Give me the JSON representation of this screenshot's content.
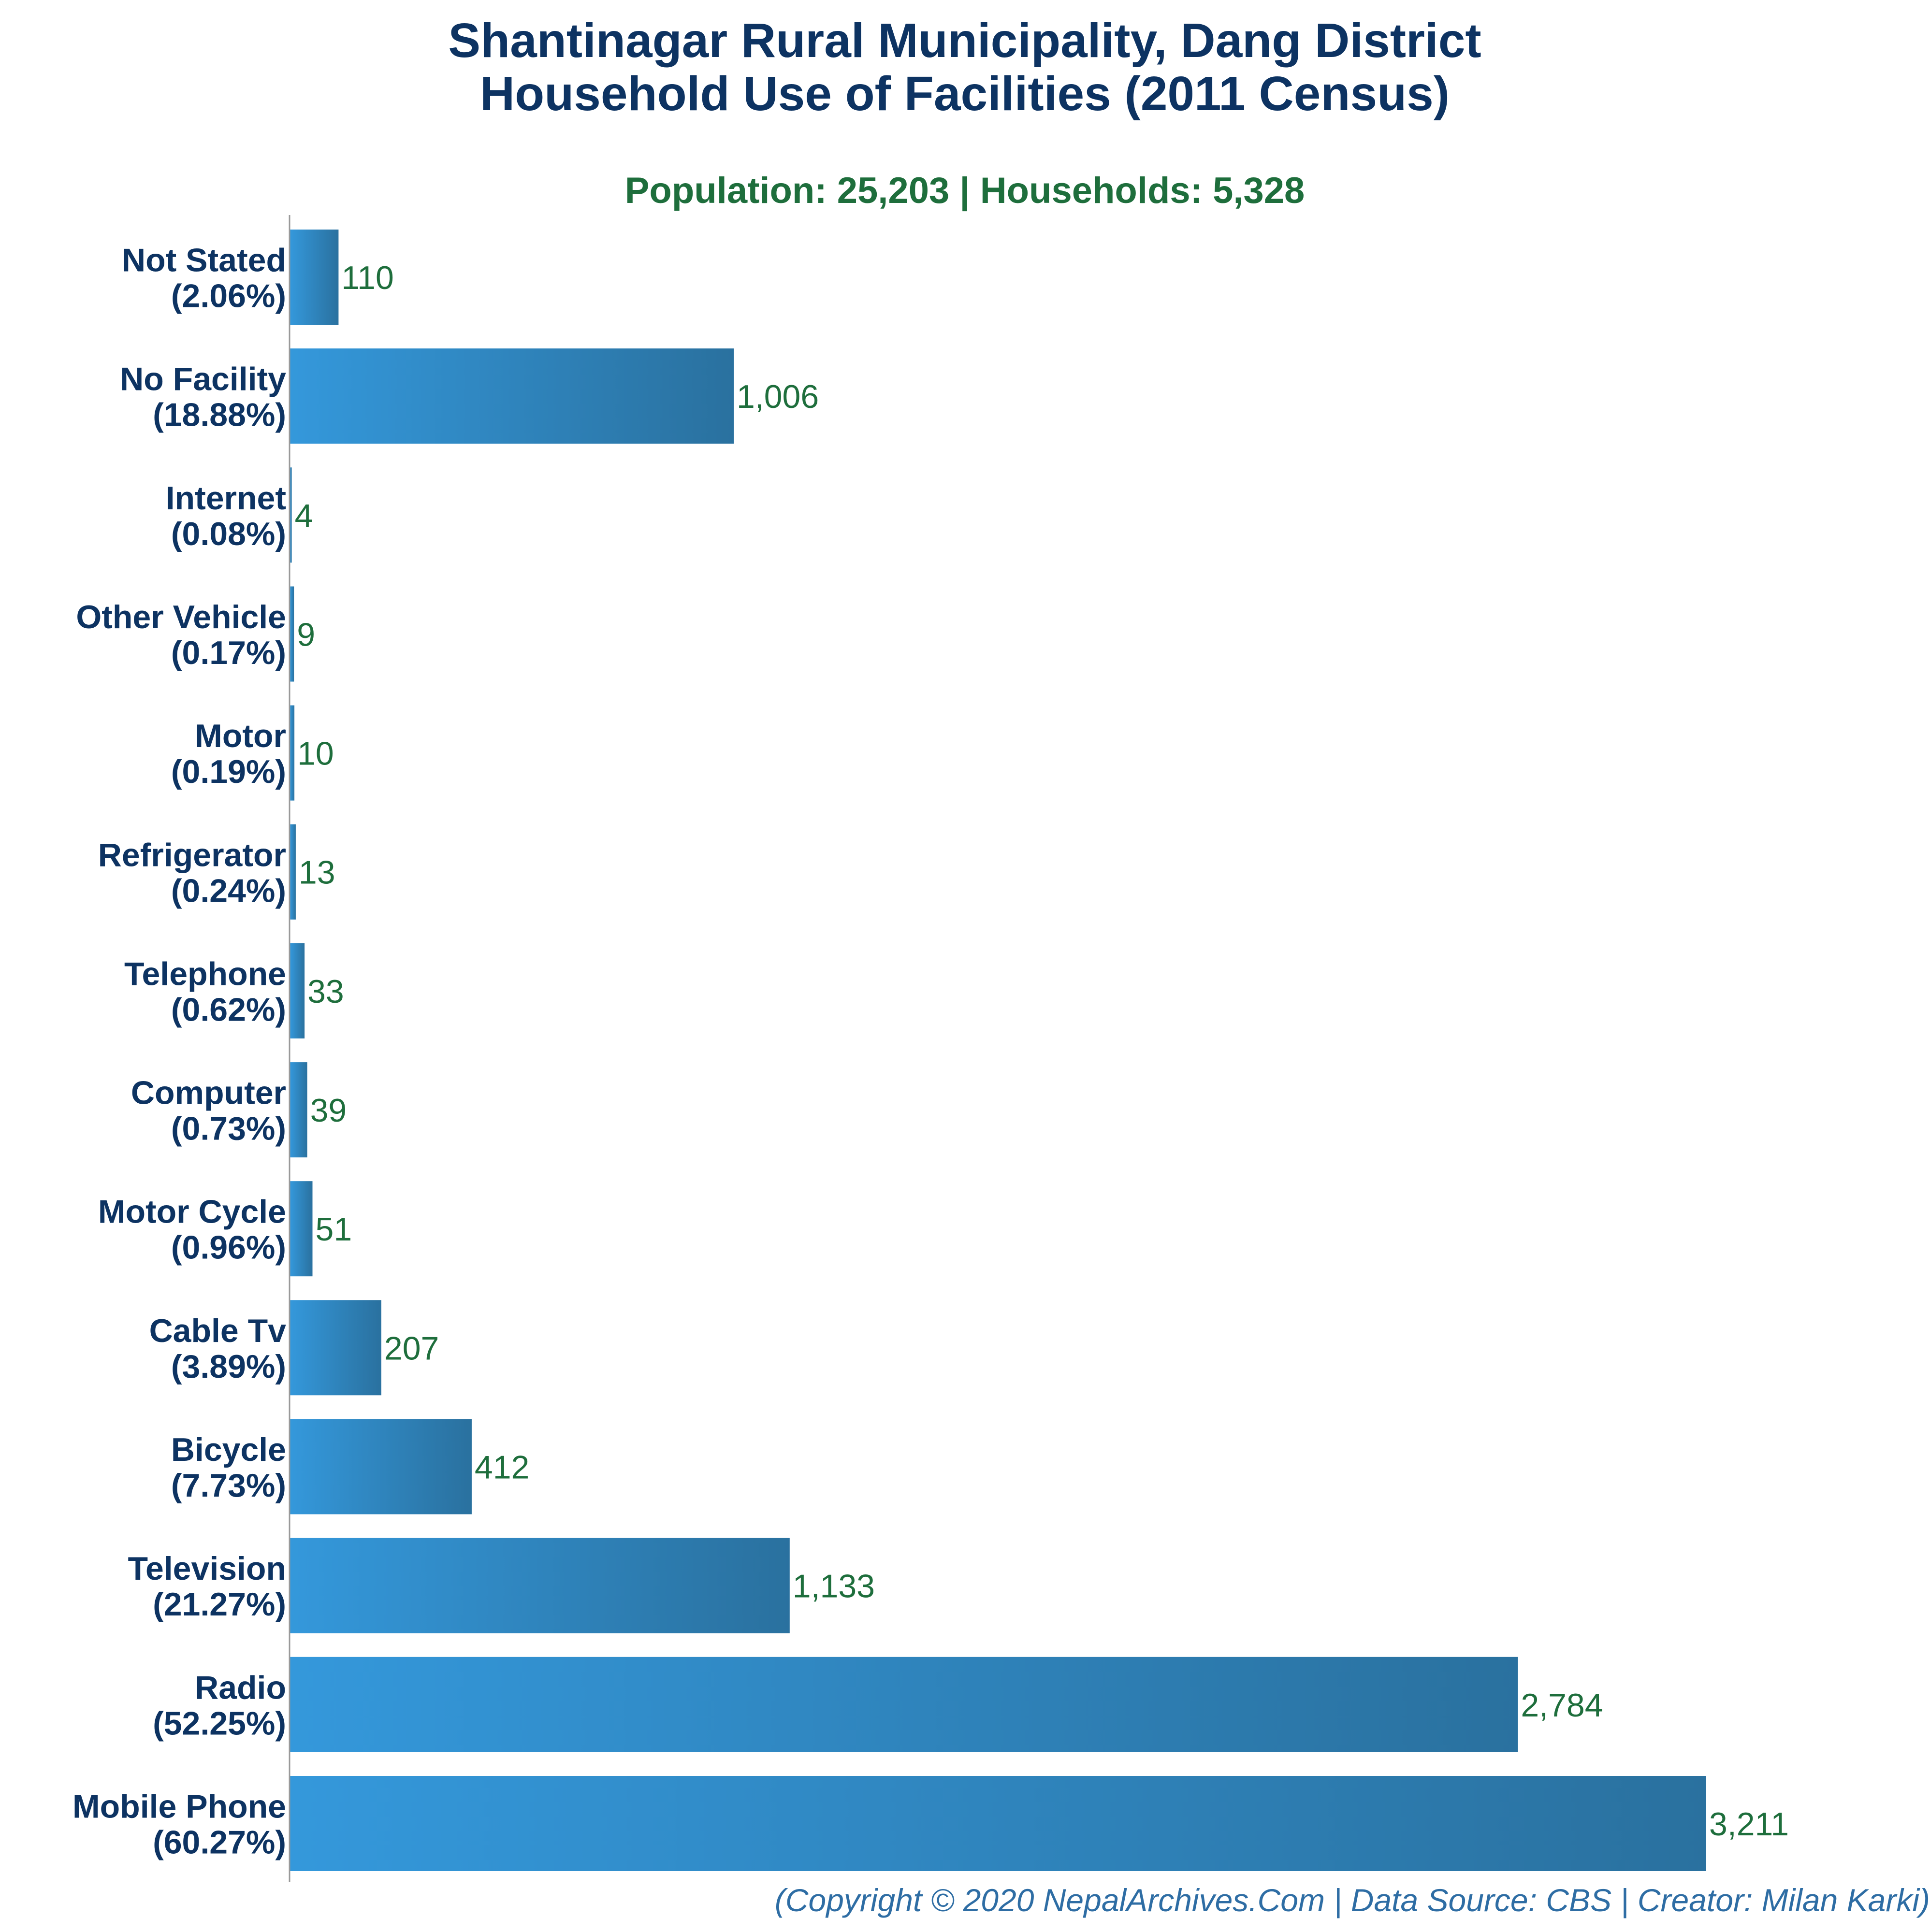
{
  "title_line1": "Shantinagar Rural Municipality, Dang District",
  "title_line2": "Household Use of Facilities (2011 Census)",
  "subtitle": "Population: 25,203 | Households: 5,328",
  "footer": "(Copyright © 2020 NepalArchives.Com | Data Source: CBS | Creator: Milan Karki)",
  "colors": {
    "title": "#0d3362",
    "subtitle": "#1e6e3c",
    "bar_light": "#3498db",
    "bar_dark": "#2a719f",
    "value_label": "#1e6e3c",
    "category_label": "#0d3362",
    "footer": "#2e6da4",
    "axis": "#999999"
  },
  "chart_data": {
    "type": "bar",
    "orientation": "horizontal",
    "categories": [
      "Not Stated",
      "No Facility",
      "Internet",
      "Other Vehicle",
      "Motor",
      "Refrigerator",
      "Telephone",
      "Computer",
      "Motor Cycle",
      "Cable Tv",
      "Bicycle",
      "Television",
      "Radio",
      "Mobile Phone"
    ],
    "percent_labels": [
      "(2.06%)",
      "(18.88%)",
      "(0.08%)",
      "(0.17%)",
      "(0.19%)",
      "(0.24%)",
      "(0.62%)",
      "(0.73%)",
      "(0.96%)",
      "(3.89%)",
      "(7.73%)",
      "(21.27%)",
      "(52.25%)",
      "(60.27%)"
    ],
    "values": [
      110,
      1006,
      4,
      9,
      10,
      13,
      33,
      39,
      51,
      207,
      412,
      1133,
      2784,
      3211
    ],
    "value_labels": [
      "110",
      "1,006",
      "4",
      "9",
      "10",
      "13",
      "33",
      "39",
      "51",
      "207",
      "412",
      "1,133",
      "2,784",
      "3,211"
    ],
    "xlim": [
      0,
      3211
    ],
    "grid": false,
    "legend": "none"
  }
}
